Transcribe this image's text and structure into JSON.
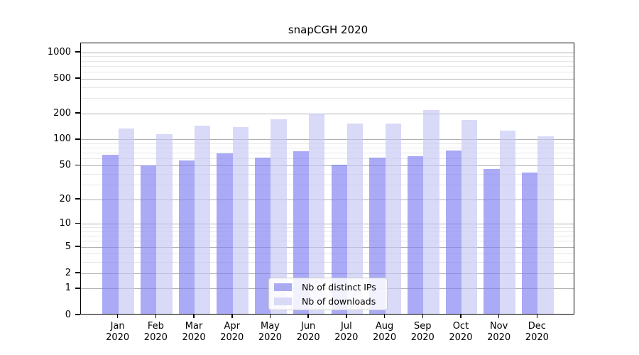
{
  "chart_data": {
    "type": "bar",
    "title": "snapCGH 2020",
    "categories": [
      "Jan",
      "Feb",
      "Mar",
      "Apr",
      "May",
      "Jun",
      "Jul",
      "Aug",
      "Sep",
      "Oct",
      "Nov",
      "Dec"
    ],
    "year_label": "2020",
    "series": [
      {
        "name": "Nb of distinct IPs",
        "color_rgba": "rgba(124,124,243,0.65)",
        "color_hex": "#aaaaf2",
        "values": [
          65,
          49,
          56,
          67,
          60,
          71,
          50,
          60,
          62,
          72,
          44,
          40
        ]
      },
      {
        "name": "Nb of downloads",
        "color_rgba": "rgba(196,196,244,0.65)",
        "color_hex": "#d9d9f8",
        "values": [
          130,
          111,
          141,
          134,
          165,
          194,
          148,
          149,
          211,
          164,
          122,
          105
        ]
      }
    ],
    "yscale": "log1p",
    "ylim": [
      0,
      1280
    ],
    "major_ticks": [
      0,
      1,
      2,
      5,
      10,
      20,
      50,
      100,
      200,
      500,
      1000
    ],
    "minor_ticks": [
      3,
      4,
      6,
      7,
      8,
      9,
      30,
      40,
      60,
      70,
      80,
      90,
      300,
      400,
      600,
      700,
      800,
      900
    ],
    "grid": true,
    "legend_position": "bottom-center",
    "colors": {
      "major_grid": "#b0b0b0",
      "minor_grid": "#e7e7e7",
      "spine": "#000000",
      "legend_border": "#cccccc"
    }
  }
}
